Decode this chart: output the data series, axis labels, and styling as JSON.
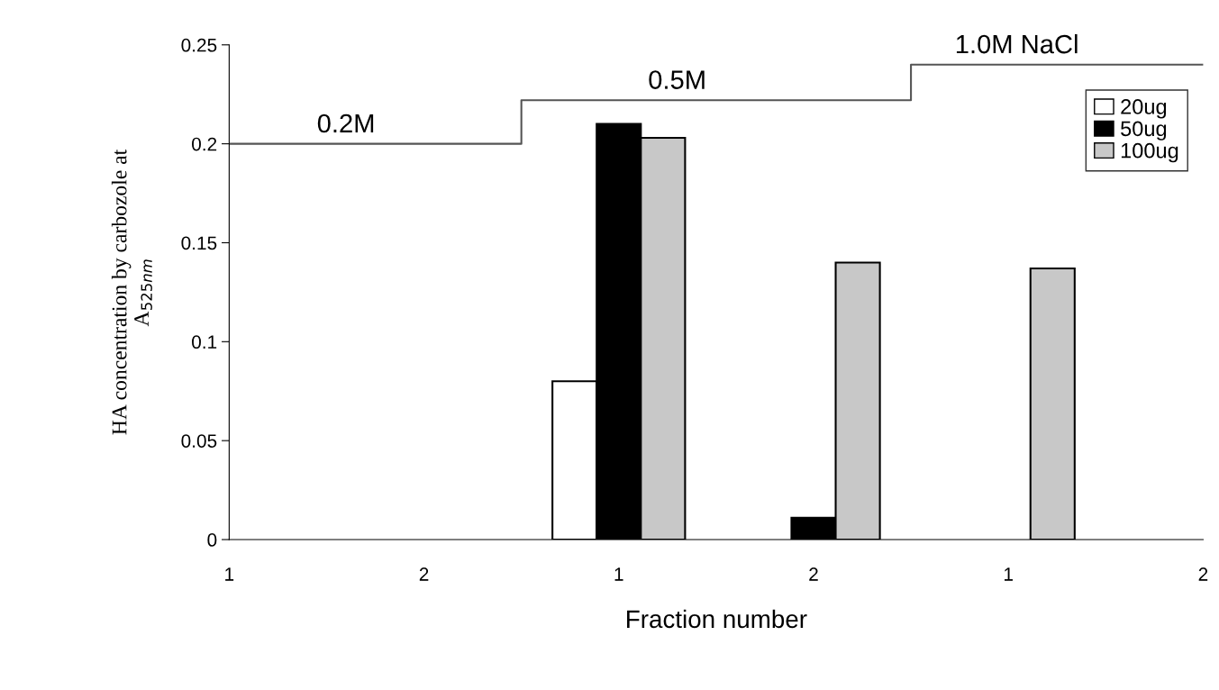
{
  "chart_data": {
    "type": "bar",
    "xlabel": "Fraction number",
    "ylabel": "HA concentration by carbozole at\nA$_{525nm}$",
    "categories": [
      "1",
      "2",
      "1",
      "2",
      "1",
      "2"
    ],
    "series": [
      {
        "name": "20ug",
        "color": "#ffffff",
        "values": [
          null,
          null,
          0.08,
          null,
          null,
          null
        ]
      },
      {
        "name": "50ug",
        "color": "#000000",
        "values": [
          null,
          null,
          0.21,
          0.011,
          null,
          null
        ]
      },
      {
        "name": "100ug",
        "color": "#c8c8c8",
        "values": [
          null,
          null,
          0.203,
          0.14,
          0.137,
          null
        ]
      },
      {
        "type": "step",
        "color": "#555555",
        "values": [
          0.2,
          0.2,
          0.222,
          0.222,
          0.24,
          0.24
        ]
      }
    ],
    "annotations": [
      "0.2M",
      "0.5M",
      "1.0M NaCl"
    ],
    "ylim": [
      0,
      0.25
    ],
    "yticks": [
      0,
      0.05,
      0.1,
      0.15,
      0.2,
      0.25
    ],
    "grid": false,
    "legend": "top right"
  }
}
